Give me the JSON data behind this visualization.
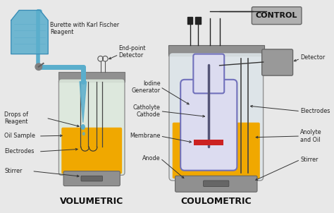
{
  "bg_color": "#e8e8e8",
  "title_vol": "VOLUMETRIC",
  "title_coul": "COULOMETRIC",
  "control_label": "CONTROL",
  "labels_vol": {
    "burette": "Burette with Karl Fischer\nReagent",
    "endpoint": "End-point\nDetector",
    "drops": "Drops of\nReagent",
    "oil": "Oil Sample",
    "electrodes_v": "Electrodes",
    "stirrer_v": "Stirrer"
  },
  "labels_coul": {
    "iodine": "Iodine\nGenerator",
    "catholyte": "Catholyte\nCathode",
    "membrane": "Membrane",
    "anode": "Anode",
    "detector": "Detector",
    "electrodes_c": "Electrodes",
    "anolyte": "Anolyte\nand Oil",
    "stirrer_c": "Stirrer"
  },
  "colors": {
    "burette_blue": "#5aaecc",
    "vessel_glass": "#dce8dc",
    "vessel_fill": "#f0a800",
    "metal_grey": "#909090",
    "metal_dark": "#606060",
    "electrode_line": "#444444",
    "drop": "#5aaecc",
    "iodine_gen_outline": "#7070bb",
    "iodine_gen_fill": "#dcdcf0",
    "membrane_red": "#cc2222",
    "control_box": "#aaaaaa",
    "detector_box": "#aaaaaa",
    "text_color": "#222222",
    "title_color": "#111111",
    "arrow_color": "#333333",
    "outer_vessel_fill": "#e0e4e8",
    "anolyte_fill": "#f0a800"
  },
  "font_sizes": {
    "title": 8,
    "label": 5.8,
    "control": 7
  }
}
